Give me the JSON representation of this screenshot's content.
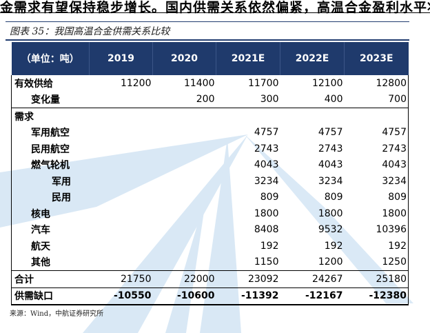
{
  "page_text": "金需求有望保持稳步增长。国内供需关系依然偏紧，高温合金盈利水平将",
  "caption": "图表 35：我国高温合金供需关系比较",
  "table": {
    "headers": [
      "（单位：吨）",
      "2019",
      "2020",
      "2021E",
      "2022E",
      "2023E"
    ],
    "rows": [
      {
        "label": "有效供给",
        "level": 1,
        "values": [
          "11200",
          "11400",
          "11700",
          "12100",
          "12800"
        ]
      },
      {
        "label": "变化量",
        "level": 2,
        "values": [
          "",
          "200",
          "300",
          "400",
          "700"
        ]
      },
      {
        "label": "需求",
        "level": 1,
        "values": [
          "",
          "",
          "",
          "",
          ""
        ]
      },
      {
        "label": "军用航空",
        "level": 2,
        "values": [
          "",
          "",
          "4757",
          "4757",
          "4757"
        ]
      },
      {
        "label": "民用航空",
        "level": 2,
        "values": [
          "",
          "",
          "2743",
          "2743",
          "2743"
        ]
      },
      {
        "label": "燃气轮机",
        "level": 2,
        "values": [
          "",
          "",
          "4043",
          "4043",
          "4043"
        ]
      },
      {
        "label": "军用",
        "level": 4,
        "values": [
          "",
          "",
          "3234",
          "3234",
          "3234"
        ]
      },
      {
        "label": "民用",
        "level": 4,
        "values": [
          "",
          "",
          "809",
          "809",
          "809"
        ]
      },
      {
        "label": "核电",
        "level": 2,
        "values": [
          "",
          "",
          "1800",
          "1800",
          "1800"
        ]
      },
      {
        "label": "汽车",
        "level": 2,
        "values": [
          "",
          "",
          "8408",
          "9532",
          "10396"
        ]
      },
      {
        "label": "航天",
        "level": 2,
        "values": [
          "",
          "",
          "192",
          "192",
          "192"
        ]
      },
      {
        "label": "其他",
        "level": 2,
        "values": [
          "",
          "",
          "1150",
          "1200",
          "1250"
        ]
      },
      {
        "label": "合计",
        "level": 1,
        "values": [
          "21750",
          "22000",
          "23092",
          "24267",
          "25180"
        ]
      },
      {
        "label": "供需缺口",
        "level": 1,
        "values": [
          "-10550",
          "-10600",
          "-11392",
          "-12167",
          "-12380"
        ]
      }
    ]
  },
  "source": "来源：Wind，中航证券研究所",
  "colors": {
    "header_bg": "#1f3a6c",
    "watermark": "#cfe2f3"
  }
}
